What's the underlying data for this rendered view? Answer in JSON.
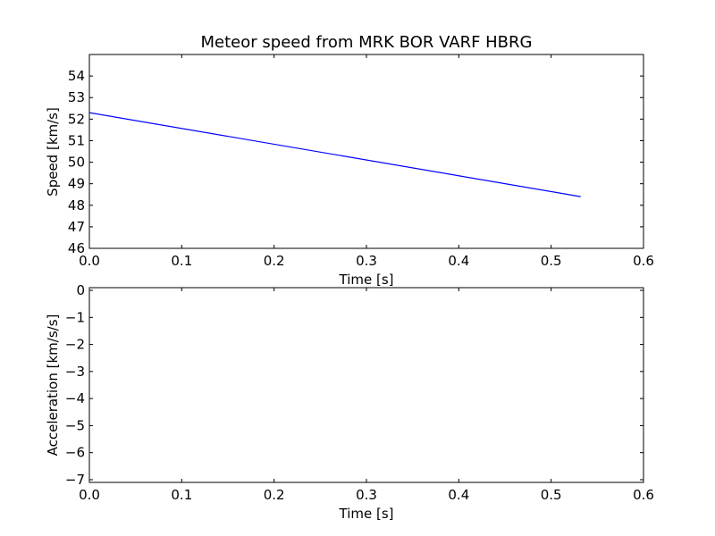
{
  "chart_data": [
    {
      "type": "line",
      "title": "Meteor speed from  MRK BOR VARF HBRG",
      "xlabel": "Time [s]",
      "ylabel": "Speed [km/s]",
      "xlim": [
        0.0,
        0.6
      ],
      "ylim": [
        46,
        55
      ],
      "xticks": [
        0.0,
        0.1,
        0.2,
        0.3,
        0.4,
        0.5,
        0.6
      ],
      "xtick_labels": [
        "0.0",
        "0.1",
        "0.2",
        "0.3",
        "0.4",
        "0.5",
        "0.6"
      ],
      "yticks": [
        46,
        47,
        48,
        49,
        50,
        51,
        52,
        53,
        54
      ],
      "ytick_labels": [
        "46",
        "47",
        "48",
        "49",
        "50",
        "51",
        "52",
        "53",
        "54"
      ],
      "grid": false,
      "series": [
        {
          "color": "#0000ff",
          "x": [
            0.0,
            0.532
          ],
          "y": [
            52.3,
            48.4
          ]
        }
      ]
    },
    {
      "type": "line",
      "title": "",
      "xlabel": "Time [s]",
      "ylabel": "Acceleration [km/s/s]",
      "xlim": [
        0.0,
        0.6
      ],
      "ylim": [
        -7.1,
        0.1
      ],
      "xticks": [
        0.0,
        0.1,
        0.2,
        0.3,
        0.4,
        0.5,
        0.6
      ],
      "xtick_labels": [
        "0.0",
        "0.1",
        "0.2",
        "0.3",
        "0.4",
        "0.5",
        "0.6"
      ],
      "yticks": [
        0,
        -1,
        -2,
        -3,
        -4,
        -5,
        -6,
        -7
      ],
      "ytick_labels": [
        "0",
        "−1",
        "−2",
        "−3",
        "−4",
        "−5",
        "−6",
        "−7"
      ],
      "grid": false,
      "series": []
    }
  ]
}
